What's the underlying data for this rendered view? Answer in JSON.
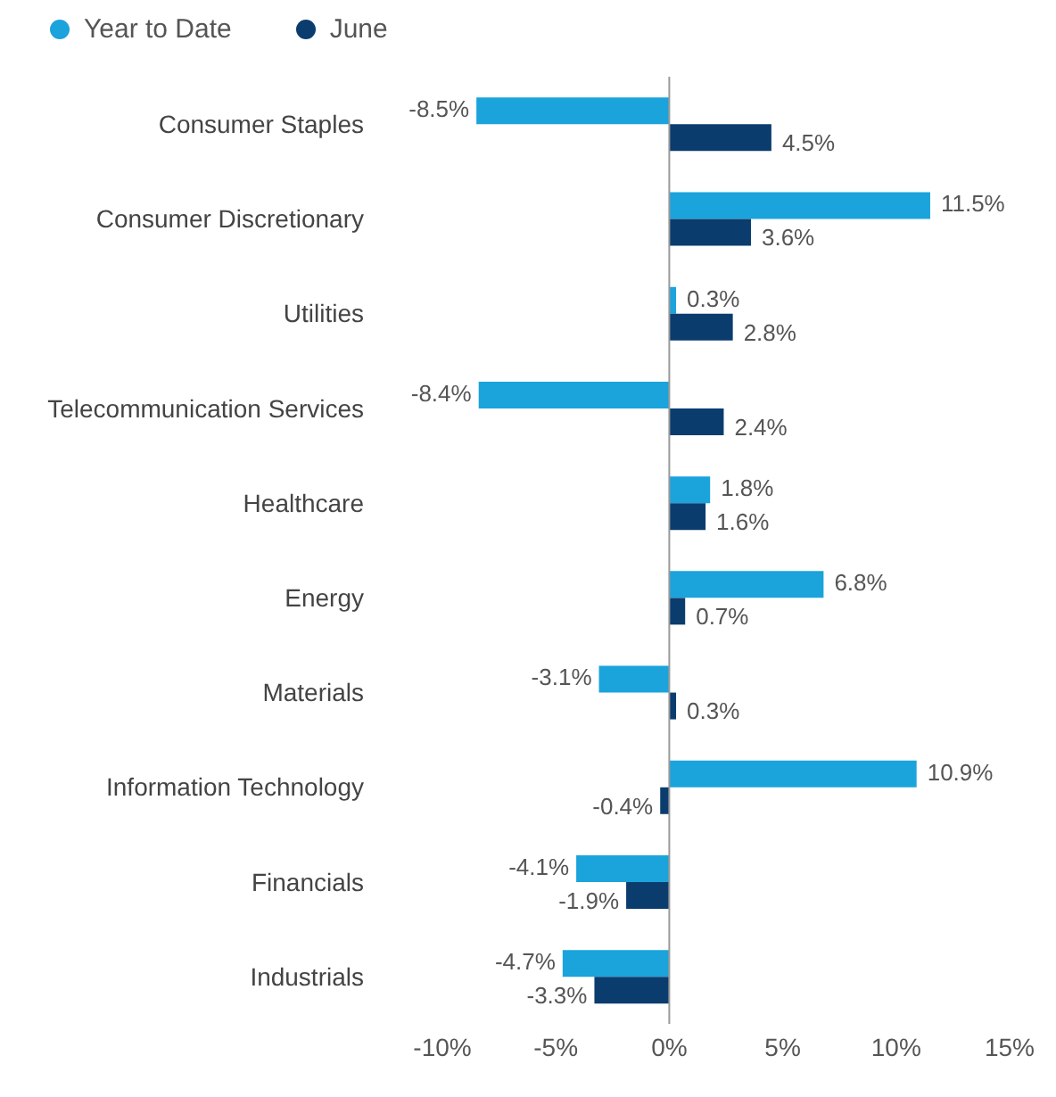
{
  "chart_data": {
    "type": "bar",
    "orientation": "horizontal",
    "categories": [
      "Consumer Staples",
      "Consumer Discretionary",
      "Utilities",
      "Telecommunication Services",
      "Healthcare",
      "Energy",
      "Materials",
      "Information Technology",
      "Financials",
      "Industrials"
    ],
    "series": [
      {
        "name": "Year to Date",
        "color": "#1ba3dc",
        "values": [
          -8.5,
          11.5,
          0.3,
          -8.4,
          1.8,
          6.8,
          -3.1,
          10.9,
          -4.1,
          -4.7
        ],
        "value_labels": [
          "-8.5%",
          "11.5%",
          "0.3%",
          "-8.4%",
          "1.8%",
          "6.8%",
          "-3.1%",
          "10.9%",
          "-4.1%",
          "-4.7%"
        ]
      },
      {
        "name": "June",
        "color": "#0b3c6e",
        "values": [
          4.5,
          3.6,
          2.8,
          2.4,
          1.6,
          0.7,
          0.3,
          -0.4,
          -1.9,
          -3.3
        ],
        "value_labels": [
          "4.5%",
          "3.6%",
          "2.8%",
          "2.4%",
          "1.6%",
          "0.7%",
          "0.3%",
          "-0.4%",
          "-1.9%",
          "-3.3%"
        ]
      }
    ],
    "xlim": [
      -10,
      15
    ],
    "xticks": [
      {
        "value": -10,
        "label": "-10%"
      },
      {
        "value": -5,
        "label": "-5%"
      },
      {
        "value": 0,
        "label": "0%"
      },
      {
        "value": 5,
        "label": "5%"
      },
      {
        "value": 10,
        "label": "10%"
      },
      {
        "value": 15,
        "label": "15%"
      }
    ],
    "ref_lines": [
      {
        "axis": "x",
        "value": 0,
        "color": "#999999"
      }
    ],
    "grid": false,
    "legend": "top left"
  }
}
